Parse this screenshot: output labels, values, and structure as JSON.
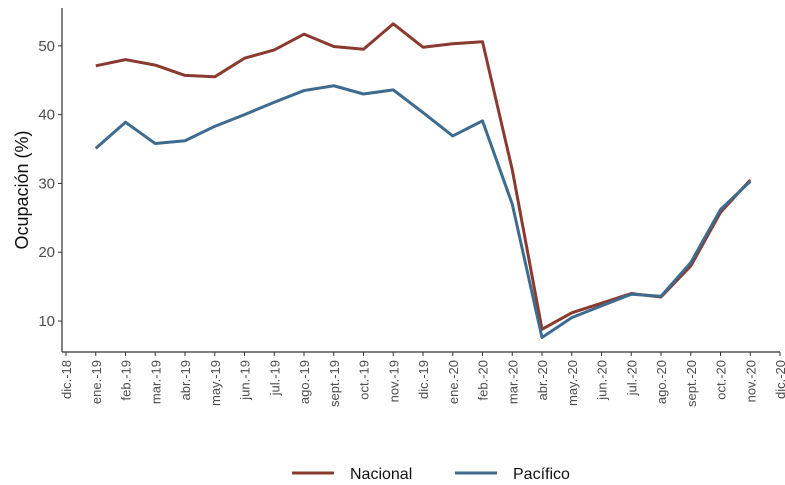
{
  "chart_data": {
    "type": "line",
    "y_label": "Ocupación (%)",
    "categories": [
      "dic.-18",
      "ene.-19",
      "feb.-19",
      "mar.-19",
      "abr.-19",
      "may.-19",
      "jun.-19",
      "jul.-19",
      "ago.-19",
      "sept.-19",
      "oct.-19",
      "nov.-19",
      "dic.-19",
      "ene.-20",
      "feb.-20",
      "mar.-20",
      "abr.-20",
      "may.-20",
      "jun.-20",
      "jul.-20",
      "ago.-20",
      "sept.-20",
      "oct.-20",
      "nov.-20",
      "dic.-20"
    ],
    "series": [
      {
        "name": "Nacional",
        "color": "#8b3a2f",
        "values": [
          null,
          47.1,
          48.0,
          47.2,
          45.7,
          45.5,
          48.2,
          49.4,
          51.7,
          49.9,
          49.5,
          53.2,
          49.8,
          50.3,
          50.6,
          32.0,
          8.8,
          11.2,
          12.6,
          14.0,
          13.5,
          18.0,
          25.8,
          30.5,
          null
        ]
      },
      {
        "name": "Pacífico",
        "color": "#3e6b8e",
        "values": [
          null,
          35.1,
          38.9,
          35.8,
          36.2,
          38.3,
          40.0,
          41.8,
          43.5,
          44.2,
          43.0,
          43.6,
          40.3,
          36.9,
          39.1,
          27.0,
          7.6,
          10.5,
          12.2,
          13.9,
          13.6,
          18.5,
          26.2,
          30.3,
          null
        ]
      }
    ],
    "ylim": [
      5.5,
      55.5
    ],
    "yticks": [
      10,
      20,
      30,
      40,
      50
    ],
    "grid": false,
    "legend": "bottom"
  }
}
